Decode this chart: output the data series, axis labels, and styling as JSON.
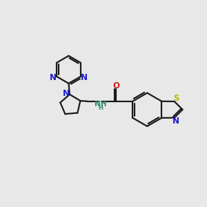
{
  "background_color": "#e8e8e8",
  "bond_color": "#1a1a1a",
  "n_color": "#1a1acc",
  "s_color": "#b8b800",
  "o_color": "#cc2020",
  "nh_color": "#2a8a6a",
  "line_width": 1.6,
  "figsize": [
    3.0,
    3.0
  ],
  "dpi": 100,
  "xlim": [
    0,
    10
  ],
  "ylim": [
    0,
    10
  ]
}
